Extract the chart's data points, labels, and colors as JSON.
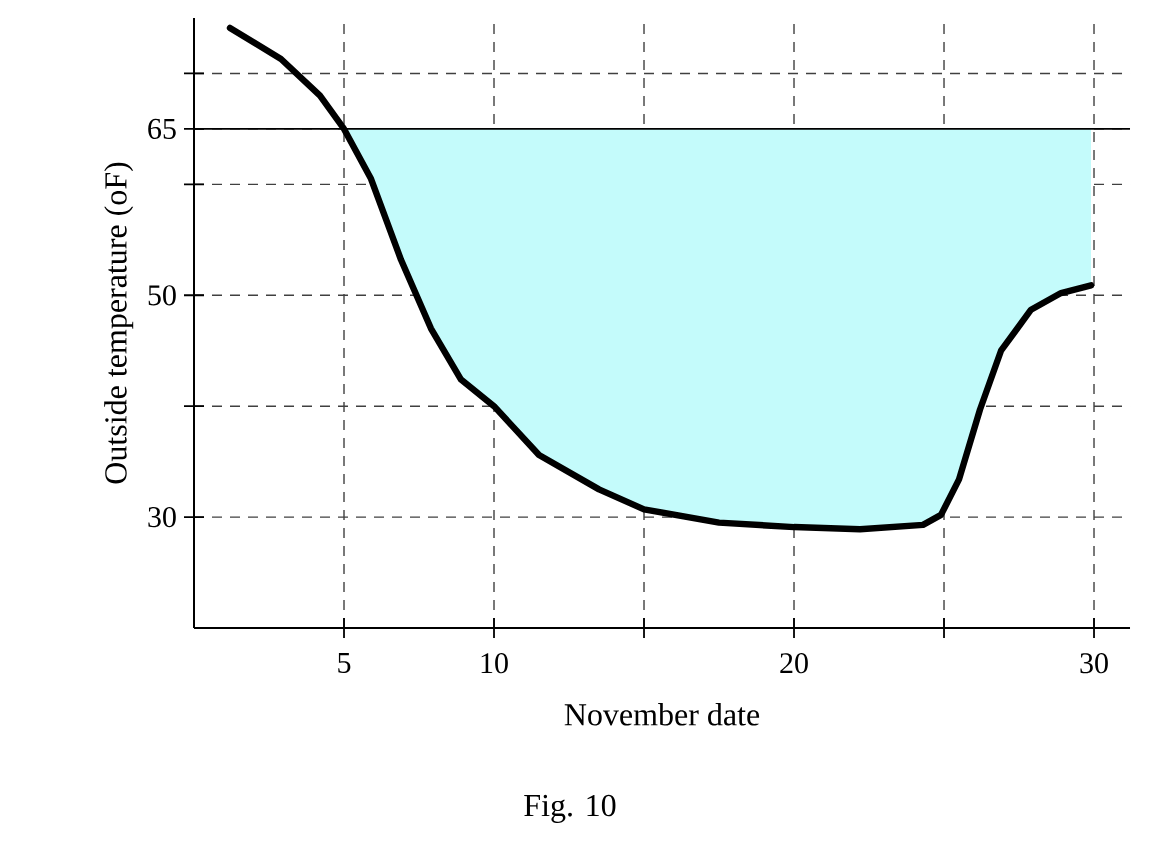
{
  "chart_data": {
    "type": "line",
    "xlabel": "November date",
    "ylabel": "Outside temperature  (oF)",
    "annotations": [
      "Fig. 10"
    ],
    "xlim": [
      0,
      31.2
    ],
    "ylim": [
      20,
      75
    ],
    "xticks": [
      5,
      10,
      {
        "value": 15,
        "label": null
      },
      20,
      {
        "value": 25,
        "label": null
      },
      30
    ],
    "yticks": [
      30,
      {
        "value": 40,
        "label": null
      },
      50,
      {
        "value": 60,
        "label": null
      },
      65,
      {
        "value": 70,
        "label": null
      }
    ],
    "grid": true,
    "ref_lines": [
      {
        "axis": "y",
        "value": 65,
        "color": "#000000",
        "line_style": "solid"
      }
    ],
    "series": [
      {
        "color": "#000000",
        "x": [
          1.2,
          2.9,
          4.2,
          5,
          5.9,
          6.9,
          7.9,
          8.9,
          10,
          11.5,
          13.5,
          15,
          17.5,
          20,
          22.2,
          24.3,
          24.9,
          25.5,
          26.2,
          26.9,
          27.9,
          28.9,
          29.9
        ],
        "values": [
          74.1,
          71.3,
          68,
          65,
          60.5,
          53.2,
          47,
          42.4,
          40,
          35.6,
          32.5,
          30.7,
          29.5,
          29.1,
          28.9,
          29.3,
          30.2,
          33.4,
          39.7,
          45,
          48.7,
          50.2,
          50.9
        ],
        "lower": [
          null,
          null,
          null,
          65,
          60.5,
          53.2,
          47,
          42.4,
          40,
          35.6,
          32.5,
          30.7,
          29.5,
          29.1,
          28.9,
          29.3,
          30.2,
          33.4,
          39.7,
          45,
          48.7,
          50.2,
          50.9
        ],
        "upper": [
          null,
          null,
          null,
          65,
          65,
          65,
          65,
          65,
          65,
          65,
          65,
          65,
          65,
          65,
          65,
          65,
          65,
          65,
          65,
          65,
          65,
          65,
          65
        ]
      }
    ]
  }
}
